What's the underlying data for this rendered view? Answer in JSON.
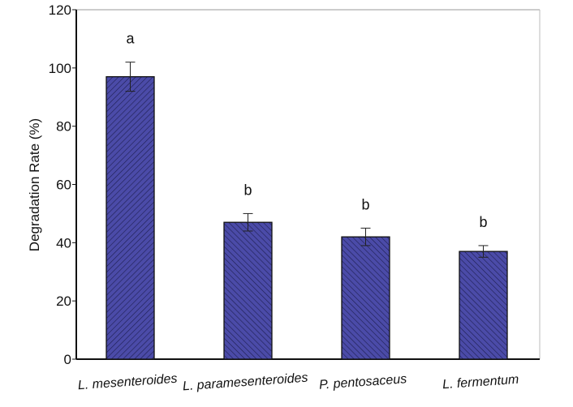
{
  "chart_data": {
    "type": "bar",
    "title": "",
    "xlabel": "",
    "ylabel": "Degradation Rate (%)",
    "ylim": [
      0,
      120
    ],
    "yticks": [
      0,
      20,
      40,
      60,
      80,
      100,
      120
    ],
    "categories": [
      "L. mesenteroides",
      "L. paramesenteroides",
      "P. pentosaceus",
      "L. fermentum"
    ],
    "values": [
      97,
      47,
      42,
      37
    ],
    "errors": [
      5,
      3,
      3,
      2
    ],
    "significance_letters": [
      "a",
      "b",
      "b",
      "b"
    ],
    "hatch": [
      "/",
      "\\",
      "\\",
      "\\"
    ],
    "bar_color": "#4b4ba8",
    "grid": false
  }
}
